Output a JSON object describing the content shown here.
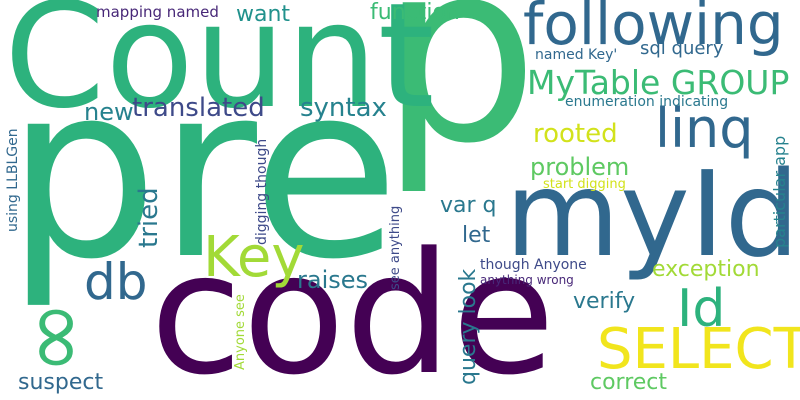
{
  "words": [
    {
      "id": "p",
      "text": "p",
      "color": "#3bbb75"
    },
    {
      "id": "pre",
      "text": "pre",
      "color": "#2db27d"
    },
    {
      "id": "count",
      "text": "Count",
      "color": "#2db27d"
    },
    {
      "id": "code",
      "text": "code",
      "color": "#440154"
    },
    {
      "id": "myid",
      "text": "myId",
      "color": "#31688e"
    },
    {
      "id": "following",
      "text": "following",
      "color": "#31688e"
    },
    {
      "id": "mytable-group",
      "text": "MyTable GROUP",
      "color": "#3bbb75"
    },
    {
      "id": "linq",
      "text": "linq",
      "color": "#31688e"
    },
    {
      "id": "select",
      "text": "SELECT",
      "color": "#f1e51d"
    },
    {
      "id": "key",
      "text": "Key",
      "color": "#a2da37"
    },
    {
      "id": "db",
      "text": "db",
      "color": "#31688e"
    },
    {
      "id": "id",
      "text": "Id",
      "color": "#2db27d"
    },
    {
      "id": "infinity",
      "text": "∞",
      "color": "#3bbb75"
    },
    {
      "id": "translated",
      "text": "translated",
      "color": "#3e4a89"
    },
    {
      "id": "syntax",
      "text": "syntax",
      "color": "#26828e"
    },
    {
      "id": "want",
      "text": "want",
      "color": "#21918c"
    },
    {
      "id": "function",
      "text": "function",
      "color": "#3bbb75"
    },
    {
      "id": "new",
      "text": "new",
      "color": "#26828e"
    },
    {
      "id": "sql-query",
      "text": "sql query",
      "color": "#31688e"
    },
    {
      "id": "named-key",
      "text": "named Key'",
      "color": "#31688e"
    },
    {
      "id": "enumeration-indicating",
      "text": "enumeration indicating",
      "color": "#2a788e"
    },
    {
      "id": "rooted",
      "text": "rooted",
      "color": "#d2e21b"
    },
    {
      "id": "problem",
      "text": "problem",
      "color": "#5ec962"
    },
    {
      "id": "tried",
      "text": "tried",
      "color": "#2a788e"
    },
    {
      "id": "var-q",
      "text": "var q",
      "color": "#2a788e"
    },
    {
      "id": "let",
      "text": "let",
      "color": "#31688e"
    },
    {
      "id": "raises",
      "text": "raises",
      "color": "#2a788e"
    },
    {
      "id": "exception",
      "text": "exception",
      "color": "#a2da37"
    },
    {
      "id": "verify",
      "text": "verify",
      "color": "#2a788e"
    },
    {
      "id": "suspect",
      "text": "suspect",
      "color": "#31688e"
    },
    {
      "id": "correct",
      "text": "correct",
      "color": "#5ec962"
    },
    {
      "id": "query-look",
      "text": "query look",
      "color": "#2a788e"
    },
    {
      "id": "though-anyone",
      "text": "though Anyone",
      "color": "#3e4a89"
    },
    {
      "id": "anything-wrong",
      "text": "anything wrong",
      "color": "#482878"
    },
    {
      "id": "start-digging",
      "text": "start digging",
      "color": "#d2e21b"
    },
    {
      "id": "particular-app",
      "text": "particular app",
      "color": "#26828e"
    },
    {
      "id": "mapping-named",
      "text": "mapping named",
      "color": "#482878"
    },
    {
      "id": "using-llblgen",
      "text": "using LLBLGen",
      "color": "#31688e"
    },
    {
      "id": "digging-though",
      "text": "digging though",
      "color": "#3e4a89"
    },
    {
      "id": "see-anything",
      "text": "see anything",
      "color": "#3e4a89"
    },
    {
      "id": "anyone-see",
      "text": "Anyone see",
      "color": "#a2da37"
    }
  ]
}
